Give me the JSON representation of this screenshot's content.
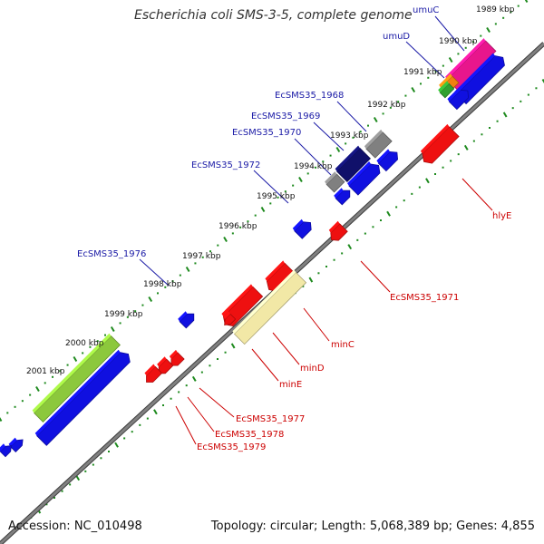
{
  "title": "Escherichia coli SMS-3-5, complete genome",
  "footer": {
    "accession": "Accession: NC_010498",
    "summary": "Topology: circular; Length: 5,068,389 bp; Genes: 4,855"
  },
  "colors": {
    "backbone": "#808080",
    "tick": "#1e8a1e",
    "forward_label": "#1a1aa6",
    "reverse_label": "#cc0000"
  },
  "kbp_labels": [
    "1989 kbp",
    "1990 kbp",
    "1991 kbp",
    "1992 kbp",
    "1993 kbp",
    "1994 kbp",
    "1995 kbp",
    "1996 kbp",
    "1997 kbp",
    "1998 kbp",
    "1999 kbp",
    "2000 kbp",
    "2001 kbp"
  ],
  "forward_gene_labels": [
    "umuC",
    "umuD",
    "EcSMS35_1968",
    "EcSMS35_1969",
    "EcSMS35_1970",
    "EcSMS35_1972",
    "EcSMS35_1976"
  ],
  "reverse_gene_labels": [
    "hlyE",
    "EcSMS35_1971",
    "minC",
    "minD",
    "minE",
    "EcSMS35_1977",
    "EcSMS35_1978",
    "EcSMS35_1979"
  ]
}
